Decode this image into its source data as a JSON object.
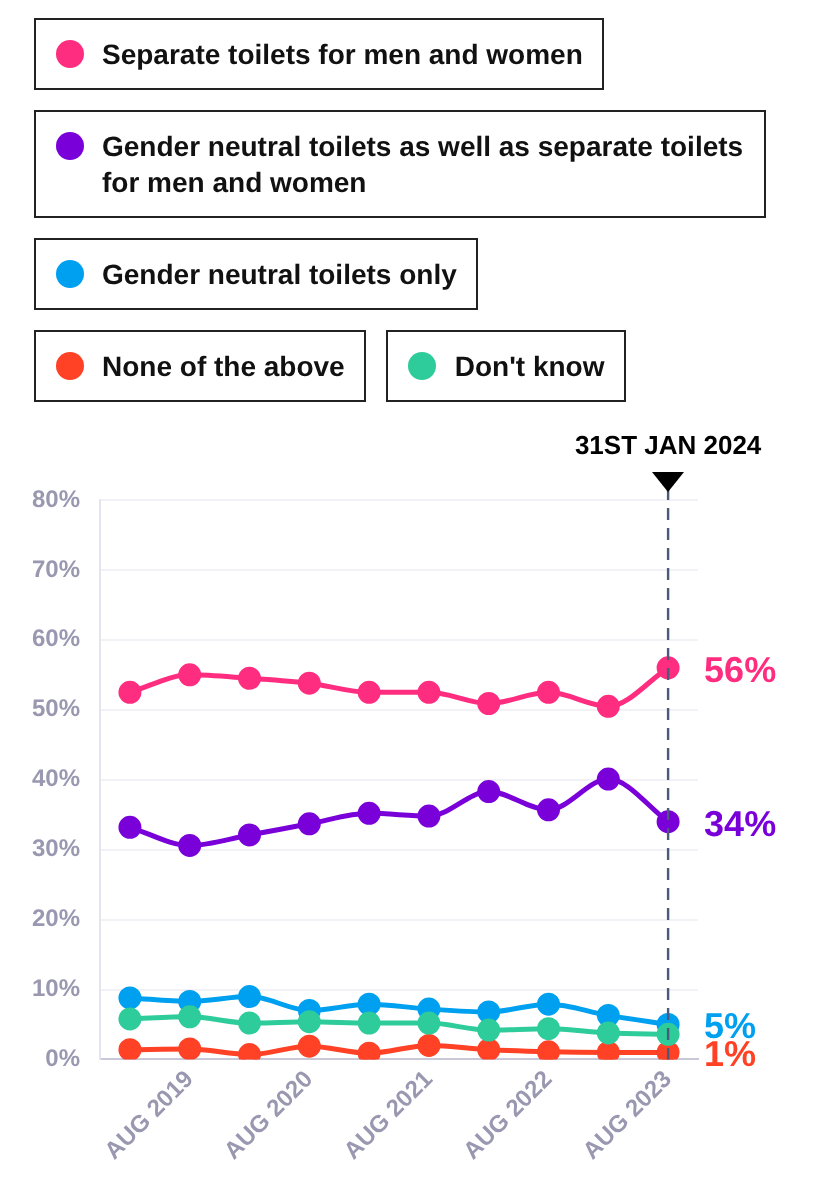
{
  "chart_data": {
    "type": "line",
    "categories": [
      null,
      "AUG 2019",
      null,
      "AUG 2020",
      null,
      "AUG 2021",
      null,
      "AUG 2022",
      null,
      "AUG 2023"
    ],
    "series": [
      {
        "name": "Separate toilets for men and women",
        "color": "#ff2d7f",
        "values": [
          52.5,
          55,
          54.5,
          53.8,
          52.5,
          52.5,
          50.9,
          52.5,
          50.5,
          56
        ],
        "value_labels": [
          null,
          null,
          null,
          null,
          null,
          null,
          null,
          null,
          null,
          "56%"
        ]
      },
      {
        "name": "Gender neutral toilets as well as separate toilets for men and women",
        "color": "#7a00d9",
        "values": [
          33.2,
          30.6,
          32.1,
          33.7,
          35.2,
          34.8,
          38.3,
          35.7,
          40.1,
          34
        ],
        "value_labels": [
          null,
          null,
          null,
          null,
          null,
          null,
          null,
          null,
          null,
          "34%"
        ]
      },
      {
        "name": "Gender neutral toilets only",
        "color": "#00a0f0",
        "values": [
          8.8,
          8.3,
          9.0,
          7.0,
          7.9,
          7.2,
          6.8,
          7.9,
          6.3,
          5
        ],
        "value_labels": [
          null,
          null,
          null,
          null,
          null,
          null,
          null,
          null,
          null,
          "5%"
        ]
      },
      {
        "name": "None of the above",
        "color": "#ff4125",
        "values": [
          1.4,
          1.5,
          0.7,
          1.9,
          0.9,
          2.0,
          1.4,
          1.1,
          1.0,
          1
        ],
        "value_labels": [
          null,
          null,
          null,
          null,
          null,
          null,
          null,
          null,
          null,
          "1%"
        ]
      },
      {
        "name": "Don't know",
        "color": "#2ecc9a",
        "values": [
          5.8,
          6.1,
          5.2,
          5.4,
          5.2,
          5.2,
          4.2,
          4.4,
          3.8,
          3.6
        ]
      }
    ],
    "ylim": [
      0,
      80
    ],
    "yticks": [
      {
        "value": 0,
        "label": "0%"
      },
      {
        "value": 10,
        "label": "10%"
      },
      {
        "value": 20,
        "label": "20%"
      },
      {
        "value": 30,
        "label": "30%"
      },
      {
        "value": 40,
        "label": "40%"
      },
      {
        "value": 50,
        "label": "50%"
      },
      {
        "value": 60,
        "label": "60%"
      },
      {
        "value": 70,
        "label": "70%"
      },
      {
        "value": 80,
        "label": "80%"
      }
    ],
    "grid": "y",
    "legend": "top",
    "marker": "circle",
    "line_style": "solid",
    "ref_lines": [
      {
        "axis": "x",
        "value": "AUG 2023",
        "label": "31ST JAN 2024",
        "color": "#4a5a78",
        "line_style": "dashed"
      }
    ]
  }
}
